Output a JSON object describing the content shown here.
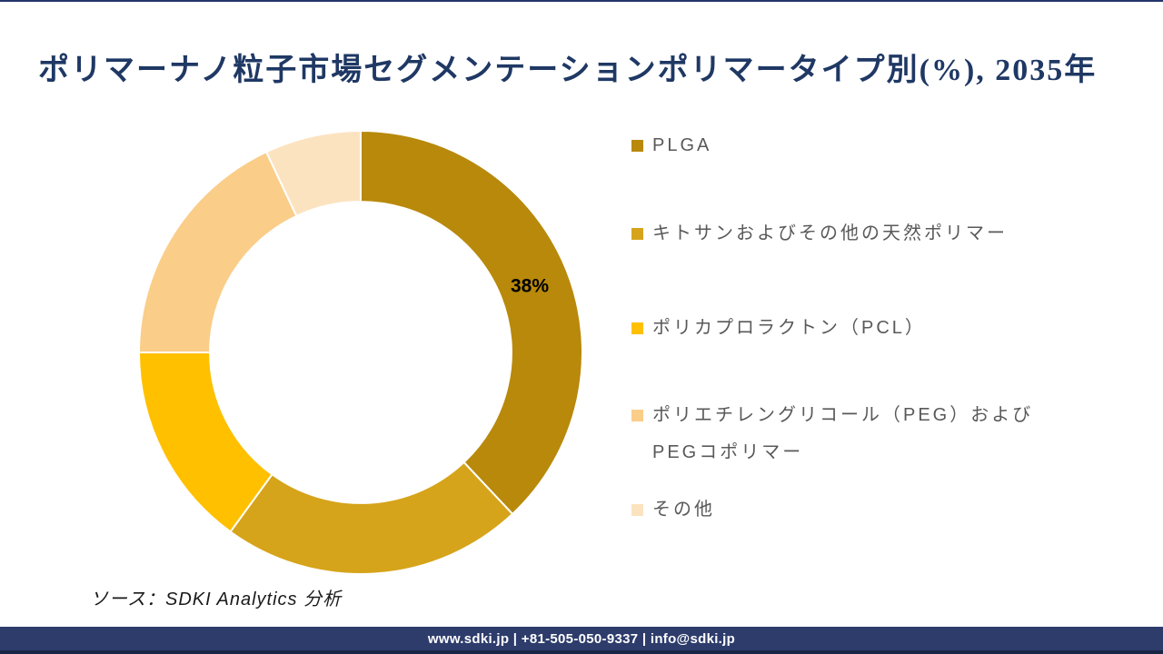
{
  "title": "ポリマーナノ粒子市場セグメンテーションポリマータイプ別(%), 2035年",
  "title_color": "#1F3864",
  "chart_data": {
    "type": "pie",
    "subtype": "donut",
    "title": "ポリマーナノ粒子市場セグメンテーションポリマータイプ別(%), 2035年",
    "categories": [
      "PLGA",
      "キトサンおよびその他の天然ポリマー",
      "ポリカプロラクトン（PCL）",
      "ポリエチレングリコール（PEG）およびPEGコポリマー",
      "その他"
    ],
    "values": [
      38,
      22,
      15,
      18,
      7
    ],
    "unit": "%",
    "colors": [
      "#B8890B",
      "#D6A41A",
      "#FFC000",
      "#FACD89",
      "#FCE3C0"
    ],
    "data_labels": [
      "38%",
      "",
      "",
      "",
      ""
    ],
    "start_angle_deg": 0,
    "direction": "clockwise",
    "inner_radius_ratio": 0.68,
    "legend_position": "right",
    "data_label_color": "#000000"
  },
  "legend": {
    "text_color": "#595959",
    "items": [
      {
        "label": "PLGA",
        "color": "#B8890B"
      },
      {
        "label": "キトサンおよびその他の天然ポリマー",
        "color": "#D6A41A"
      },
      {
        "label": "ポリカプロラクトン（PCL）",
        "color": "#FFC000"
      },
      {
        "label": "ポリエチレングリコール（PEG）およびPEGコポリマー",
        "color": "#FACD89"
      },
      {
        "label": "その他",
        "color": "#FCE3C0"
      }
    ]
  },
  "source_note": "ソース：SDKI Analytics 分析",
  "footer": {
    "text": "www.sdki.jp | +81-505-050-9337 | info@sdki.jp",
    "background": "#2D3C6B",
    "text_color": "#FFFFFF"
  }
}
